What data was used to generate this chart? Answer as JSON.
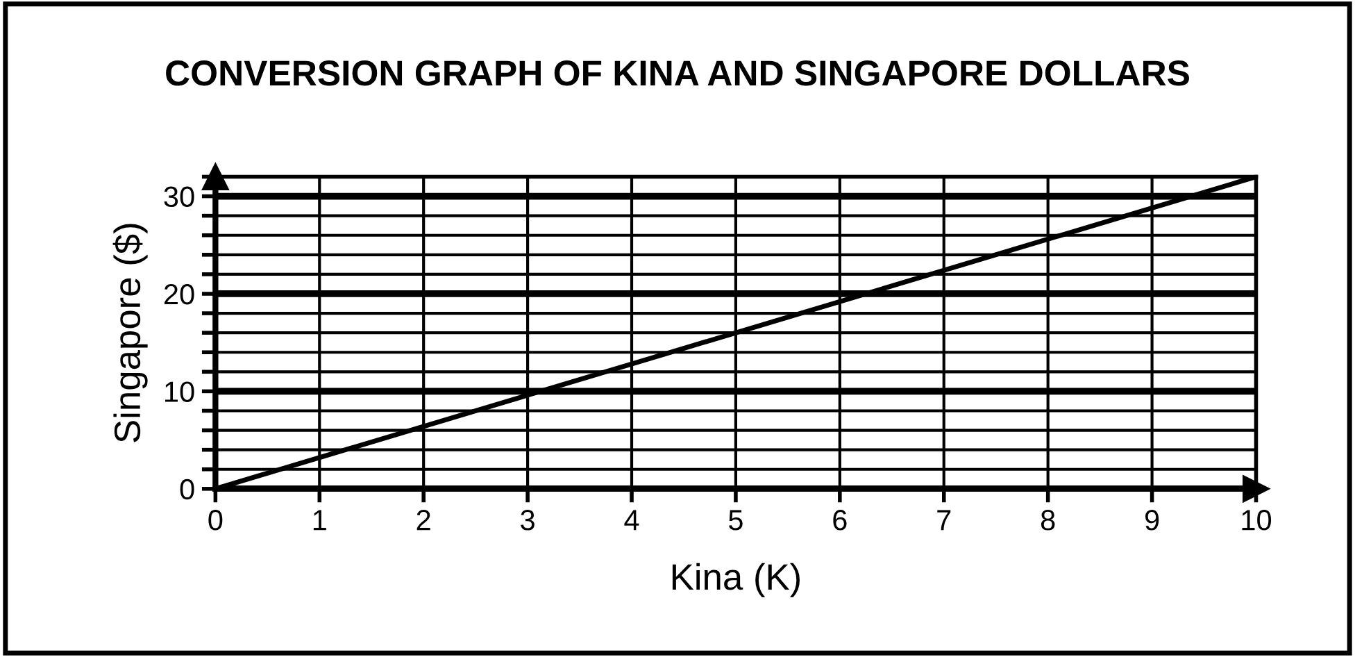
{
  "chart_data": {
    "type": "line",
    "title": "CONVERSION GRAPH OF KINA AND SINGAPORE DOLLARS",
    "xlabel": "Kina (K)",
    "ylabel": "Singapore ($)",
    "series": [
      {
        "color": "#000000",
        "x": [
          0,
          10
        ],
        "values": [
          0,
          32
        ]
      }
    ],
    "xlim": [
      0,
      10
    ],
    "ylim": [
      0,
      32
    ],
    "xticks": [
      0,
      1,
      2,
      3,
      4,
      5,
      6,
      7,
      8,
      9,
      10
    ],
    "yticks": [
      0,
      {
        "value": 2,
        "label": null
      },
      {
        "value": 4,
        "label": null
      },
      {
        "value": 6,
        "label": null
      },
      {
        "value": 8,
        "label": null
      },
      10,
      {
        "value": 12,
        "label": null
      },
      {
        "value": 14,
        "label": null
      },
      {
        "value": 16,
        "label": null
      },
      {
        "value": 18,
        "label": null
      },
      20,
      {
        "value": 22,
        "label": null
      },
      {
        "value": 24,
        "label": null
      },
      {
        "value": 26,
        "label": null
      },
      {
        "value": 28,
        "label": null
      },
      30,
      {
        "value": 32,
        "label": null
      }
    ],
    "grid": true,
    "marker": "none",
    "line_style": "solid",
    "legend": false
  }
}
